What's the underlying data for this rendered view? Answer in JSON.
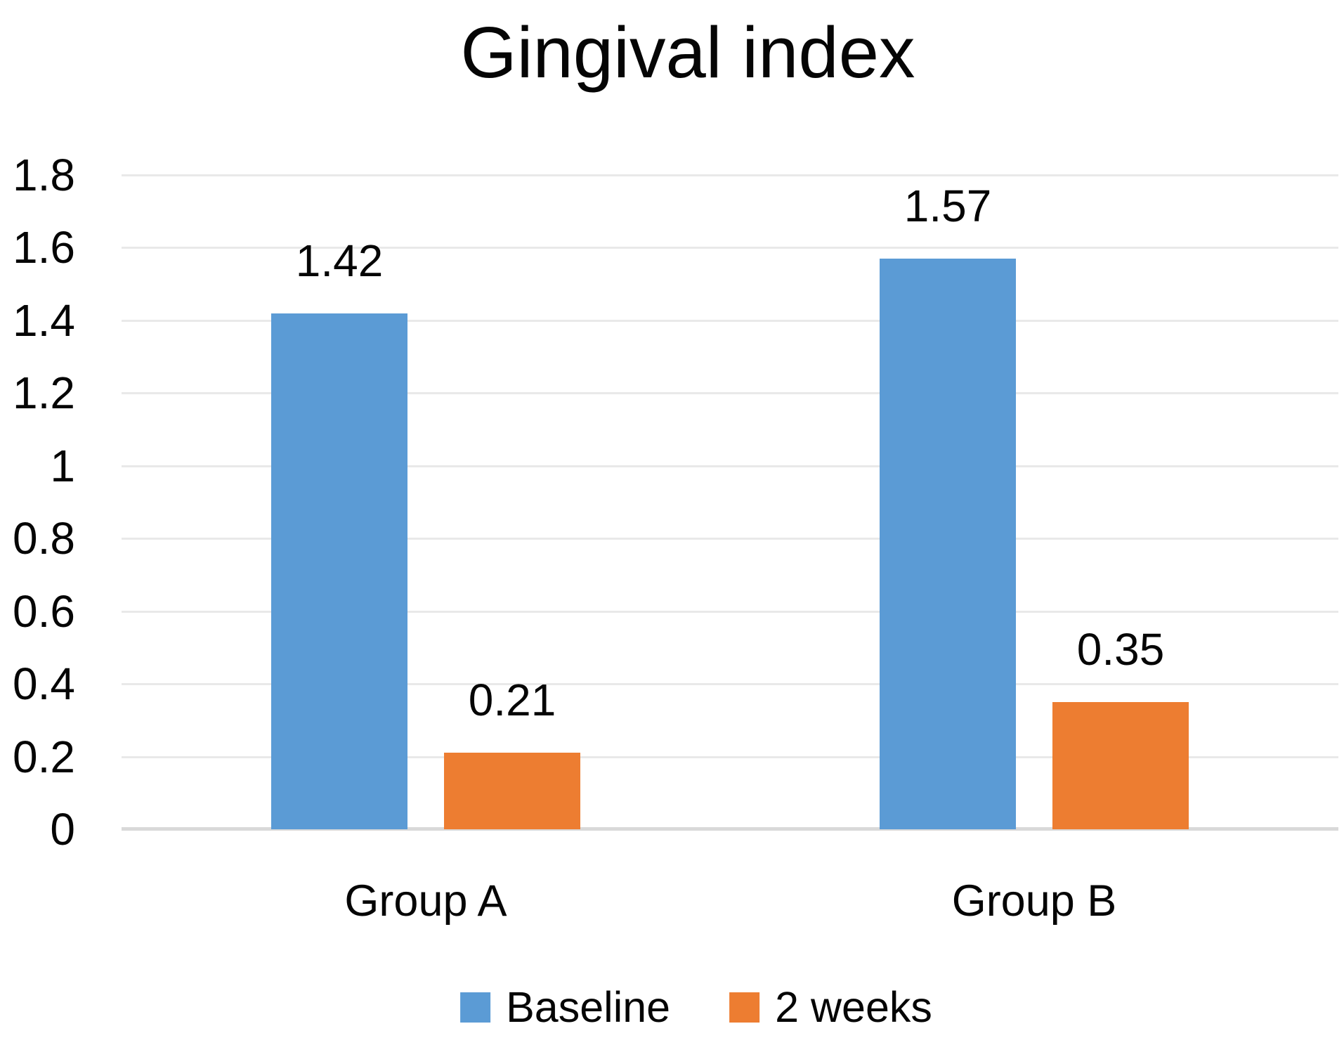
{
  "chart_data": {
    "type": "bar",
    "title": "Gingival index",
    "categories": [
      "Group A",
      "Group B"
    ],
    "series": [
      {
        "name": "Baseline",
        "color": "#5B9BD5",
        "values": [
          1.42,
          1.57
        ],
        "labels": [
          "1.42",
          "1.57"
        ]
      },
      {
        "name": "2 weeks",
        "color": "#ED7D31",
        "values": [
          0.21,
          0.35
        ],
        "labels": [
          "0.21",
          "0.35"
        ]
      }
    ],
    "y_ticks": [
      "1.8",
      "1.6",
      "1.4",
      "1.2",
      "1",
      "0.8",
      "0.6",
      "0.4",
      "0.2",
      "0"
    ],
    "ylim": [
      0,
      1.8
    ],
    "xlabel": "",
    "ylabel": "",
    "grid": "horizontal",
    "legend_position": "bottom"
  },
  "colors": {
    "series_baseline": "#5B9BD5",
    "series_two_weeks": "#ED7D31",
    "gridline": "#E9E9E9",
    "axis_line": "#D9D9D9",
    "text": "#050505",
    "background": "#FFFFFF"
  }
}
